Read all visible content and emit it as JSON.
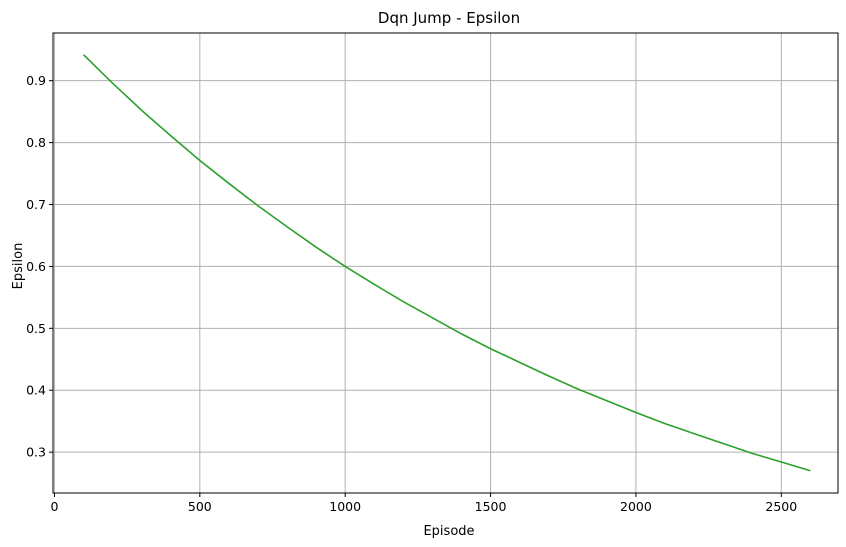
{
  "chart_data": {
    "type": "line",
    "title": "Dqn Jump - Epsilon",
    "xlabel": "Episode",
    "ylabel": "Epsilon",
    "xlim": [
      -5,
      2695
    ],
    "ylim": [
      0.234,
      0.977
    ],
    "xticks": [
      0,
      500,
      1000,
      1500,
      2000,
      2500
    ],
    "yticks": [
      0.3,
      0.4,
      0.5,
      0.6,
      0.7,
      0.8,
      0.9
    ],
    "xtick_labels": [
      "0",
      "500",
      "1000",
      "1500",
      "2000",
      "2500"
    ],
    "ytick_labels": [
      "0.3",
      "0.4",
      "0.5",
      "0.6",
      "0.7",
      "0.8",
      "0.9"
    ],
    "grid": true,
    "legend": "none",
    "series": [
      {
        "color": "#2ca02c",
        "x": [
          100,
          200,
          300,
          400,
          500,
          600,
          700,
          800,
          900,
          1000,
          1100,
          1200,
          1300,
          1400,
          1500,
          1600,
          1700,
          1800,
          1900,
          2000,
          2100,
          2200,
          2300,
          2400,
          2500,
          2600
        ],
        "y": [
          0.942,
          0.896,
          0.852,
          0.811,
          0.771,
          0.734,
          0.698,
          0.664,
          0.631,
          0.6,
          0.571,
          0.543,
          0.517,
          0.491,
          0.467,
          0.445,
          0.423,
          0.402,
          0.383,
          0.364,
          0.346,
          0.33,
          0.314,
          0.298,
          0.284,
          0.27
        ]
      }
    ]
  }
}
